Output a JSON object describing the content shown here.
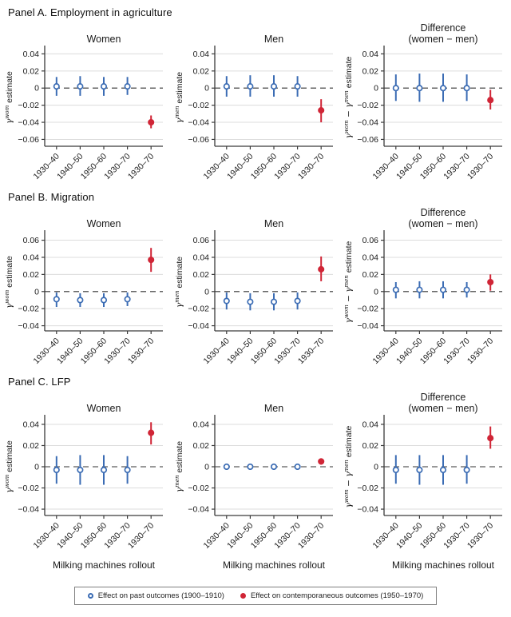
{
  "colors": {
    "blue": "#3b6cb4",
    "red": "#d02536",
    "grid": "#dcdcdc",
    "axis": "#3a3a3a",
    "zero_line": "#333333",
    "text": "#1a1a1a",
    "legend_border": "#7f7f7f"
  },
  "panels": [
    {
      "title": "Panel A. Employment in agriculture"
    },
    {
      "title": "Panel B. Migration"
    },
    {
      "title": "Panel C. LFP"
    }
  ],
  "legend": {
    "items": [
      {
        "label": "Effect on past outcomes (1900–1910)",
        "color": "blue",
        "marker": "open"
      },
      {
        "label": "Effect on contemporaneous outcomes (1950–1970)",
        "color": "red",
        "marker": "solid"
      }
    ]
  },
  "chart_data": [
    {
      "type": "scatter",
      "panel": "Panel A. Employment in agriculture",
      "title": "Women",
      "title2": "",
      "ylabel": "γ^{wom} estimate",
      "xlabel": "",
      "categories": [
        "1930–40",
        "1940–50",
        "1950–60",
        "1930–70",
        "1930–70"
      ],
      "yticks": [
        0.04,
        0.02,
        0,
        -0.02,
        -0.04,
        -0.06
      ],
      "ylim": [
        -0.068,
        0.046
      ],
      "grid": true,
      "zero_dashed": true,
      "series": [
        {
          "name": "Effect on past outcomes (1900–1910)",
          "color": "blue",
          "marker": "open",
          "points": [
            {
              "x": 0,
              "y": 0.002,
              "lo": -0.009,
              "hi": 0.013
            },
            {
              "x": 1,
              "y": 0.002,
              "lo": -0.009,
              "hi": 0.014
            },
            {
              "x": 2,
              "y": 0.002,
              "lo": -0.009,
              "hi": 0.013
            },
            {
              "x": 3,
              "y": 0.002,
              "lo": -0.008,
              "hi": 0.013
            }
          ]
        },
        {
          "name": "Effect on contemporaneous outcomes (1950–1970)",
          "color": "red",
          "marker": "solid",
          "points": [
            {
              "x": 4,
              "y": -0.04,
              "lo": -0.047,
              "hi": -0.032
            }
          ]
        }
      ]
    },
    {
      "type": "scatter",
      "panel": "Panel A. Employment in agriculture",
      "title": "Men",
      "title2": "",
      "ylabel": "γ^{men} estimate",
      "xlabel": "",
      "categories": [
        "1930–40",
        "1940–50",
        "1950–60",
        "1930–70",
        "1930–70"
      ],
      "yticks": [
        0.04,
        0.02,
        0,
        -0.02,
        -0.04,
        -0.06
      ],
      "ylim": [
        -0.068,
        0.046
      ],
      "grid": true,
      "zero_dashed": true,
      "series": [
        {
          "name": "Effect on past outcomes (1900–1910)",
          "color": "blue",
          "marker": "open",
          "points": [
            {
              "x": 0,
              "y": 0.002,
              "lo": -0.01,
              "hi": 0.014
            },
            {
              "x": 1,
              "y": 0.002,
              "lo": -0.01,
              "hi": 0.015
            },
            {
              "x": 2,
              "y": 0.002,
              "lo": -0.01,
              "hi": 0.015
            },
            {
              "x": 3,
              "y": 0.002,
              "lo": -0.01,
              "hi": 0.014
            }
          ]
        },
        {
          "name": "Effect on contemporaneous outcomes (1950–1970)",
          "color": "red",
          "marker": "solid",
          "points": [
            {
              "x": 4,
              "y": -0.026,
              "lo": -0.04,
              "hi": -0.013
            }
          ]
        }
      ]
    },
    {
      "type": "scatter",
      "panel": "Panel A. Employment in agriculture",
      "title": "Difference",
      "title2": "(women − men)",
      "ylabel": "γ^{wom} − γ^{men} estimate",
      "xlabel": "",
      "categories": [
        "1930–40",
        "1940–50",
        "1950–60",
        "1930–70",
        "1930–70"
      ],
      "yticks": [
        0.04,
        0.02,
        0,
        -0.02,
        -0.04,
        -0.06
      ],
      "ylim": [
        -0.068,
        0.046
      ],
      "grid": true,
      "zero_dashed": true,
      "series": [
        {
          "name": "Effect on past outcomes (1900–1910)",
          "color": "blue",
          "marker": "open",
          "points": [
            {
              "x": 0,
              "y": 0.0,
              "lo": -0.015,
              "hi": 0.016
            },
            {
              "x": 1,
              "y": 0.0,
              "lo": -0.016,
              "hi": 0.017
            },
            {
              "x": 2,
              "y": 0.0,
              "lo": -0.016,
              "hi": 0.017
            },
            {
              "x": 3,
              "y": 0.0,
              "lo": -0.015,
              "hi": 0.016
            }
          ]
        },
        {
          "name": "Effect on contemporaneous outcomes (1950–1970)",
          "color": "red",
          "marker": "solid",
          "points": [
            {
              "x": 4,
              "y": -0.014,
              "lo": -0.025,
              "hi": -0.002
            }
          ]
        }
      ]
    },
    {
      "type": "scatter",
      "panel": "Panel B. Migration",
      "title": "Women",
      "title2": "",
      "ylabel": "γ^{wom} estimate",
      "xlabel": "",
      "categories": [
        "1930–40",
        "1940–50",
        "1950–60",
        "1930–70",
        "1930–70"
      ],
      "yticks": [
        0.06,
        0.04,
        0.02,
        0,
        -0.02,
        -0.04
      ],
      "ylim": [
        -0.046,
        0.068
      ],
      "grid": true,
      "zero_dashed": true,
      "series": [
        {
          "name": "Effect on past outcomes (1900–1910)",
          "color": "blue",
          "marker": "open",
          "points": [
            {
              "x": 0,
              "y": -0.009,
              "lo": -0.018,
              "hi": -0.001
            },
            {
              "x": 1,
              "y": -0.01,
              "lo": -0.018,
              "hi": -0.002
            },
            {
              "x": 2,
              "y": -0.01,
              "lo": -0.018,
              "hi": -0.002
            },
            {
              "x": 3,
              "y": -0.009,
              "lo": -0.017,
              "hi": -0.001
            }
          ]
        },
        {
          "name": "Effect on contemporaneous outcomes (1950–1970)",
          "color": "red",
          "marker": "solid",
          "points": [
            {
              "x": 4,
              "y": 0.037,
              "lo": 0.023,
              "hi": 0.051
            }
          ]
        }
      ]
    },
    {
      "type": "scatter",
      "panel": "Panel B. Migration",
      "title": "Men",
      "title2": "",
      "ylabel": "γ^{men} estimate",
      "xlabel": "",
      "categories": [
        "1930–40",
        "1940–50",
        "1950–60",
        "1930–70",
        "1930–70"
      ],
      "yticks": [
        0.06,
        0.04,
        0.02,
        0,
        -0.02,
        -0.04
      ],
      "ylim": [
        -0.046,
        0.068
      ],
      "grid": true,
      "zero_dashed": true,
      "series": [
        {
          "name": "Effect on past outcomes (1900–1910)",
          "color": "blue",
          "marker": "open",
          "points": [
            {
              "x": 0,
              "y": -0.011,
              "lo": -0.021,
              "hi": -0.001
            },
            {
              "x": 1,
              "y": -0.012,
              "lo": -0.022,
              "hi": -0.002
            },
            {
              "x": 2,
              "y": -0.012,
              "lo": -0.022,
              "hi": -0.002
            },
            {
              "x": 3,
              "y": -0.011,
              "lo": -0.021,
              "hi": -0.001
            }
          ]
        },
        {
          "name": "Effect on contemporaneous outcomes (1950–1970)",
          "color": "red",
          "marker": "solid",
          "points": [
            {
              "x": 4,
              "y": 0.026,
              "lo": 0.012,
              "hi": 0.041
            }
          ]
        }
      ]
    },
    {
      "type": "scatter",
      "panel": "Panel B. Migration",
      "title": "Difference",
      "title2": "(women − men)",
      "ylabel": "γ^{wom} − γ^{men} estimate",
      "xlabel": "",
      "categories": [
        "1930–40",
        "1940–50",
        "1950–60",
        "1930–70",
        "1930–70"
      ],
      "yticks": [
        0.06,
        0.04,
        0.02,
        0,
        -0.02,
        -0.04
      ],
      "ylim": [
        -0.046,
        0.068
      ],
      "grid": true,
      "zero_dashed": true,
      "series": [
        {
          "name": "Effect on past outcomes (1900–1910)",
          "color": "blue",
          "marker": "open",
          "points": [
            {
              "x": 0,
              "y": 0.002,
              "lo": -0.008,
              "hi": 0.011
            },
            {
              "x": 1,
              "y": 0.002,
              "lo": -0.008,
              "hi": 0.012
            },
            {
              "x": 2,
              "y": 0.002,
              "lo": -0.008,
              "hi": 0.012
            },
            {
              "x": 3,
              "y": 0.002,
              "lo": -0.007,
              "hi": 0.011
            }
          ]
        },
        {
          "name": "Effect on contemporaneous outcomes (1950–1970)",
          "color": "red",
          "marker": "solid",
          "points": [
            {
              "x": 4,
              "y": 0.011,
              "lo": 0.001,
              "hi": 0.02
            }
          ]
        }
      ]
    },
    {
      "type": "scatter",
      "panel": "Panel C. LFP",
      "title": "Women",
      "title2": "",
      "ylabel": "γ^{wom} estimate",
      "xlabel": "Milking machines rollout",
      "categories": [
        "1930–40",
        "1940–50",
        "1950–60",
        "1930–70",
        "1930–70"
      ],
      "yticks": [
        0.04,
        0.02,
        0,
        -0.02,
        -0.04
      ],
      "ylim": [
        -0.046,
        0.046
      ],
      "grid": true,
      "zero_dashed": true,
      "series": [
        {
          "name": "Effect on past outcomes (1900–1910)",
          "color": "blue",
          "marker": "open",
          "points": [
            {
              "x": 0,
              "y": -0.003,
              "lo": -0.016,
              "hi": 0.01
            },
            {
              "x": 1,
              "y": -0.003,
              "lo": -0.017,
              "hi": 0.011
            },
            {
              "x": 2,
              "y": -0.003,
              "lo": -0.017,
              "hi": 0.011
            },
            {
              "x": 3,
              "y": -0.003,
              "lo": -0.016,
              "hi": 0.01
            }
          ]
        },
        {
          "name": "Effect on contemporaneous outcomes (1950–1970)",
          "color": "red",
          "marker": "solid",
          "points": [
            {
              "x": 4,
              "y": 0.032,
              "lo": 0.021,
              "hi": 0.042
            }
          ]
        }
      ]
    },
    {
      "type": "scatter",
      "panel": "Panel C. LFP",
      "title": "Men",
      "title2": "",
      "ylabel": "γ^{men} estimate",
      "xlabel": "Milking machines rollout",
      "categories": [
        "1930–40",
        "1940–50",
        "1950–60",
        "1930–70",
        "1930–70"
      ],
      "yticks": [
        0.04,
        0.02,
        0,
        -0.02,
        -0.04
      ],
      "ylim": [
        -0.046,
        0.046
      ],
      "grid": true,
      "zero_dashed": true,
      "series": [
        {
          "name": "Effect on past outcomes (1900–1910)",
          "color": "blue",
          "marker": "open",
          "points": [
            {
              "x": 0,
              "y": 0.0,
              "lo": -0.003,
              "hi": 0.003
            },
            {
              "x": 1,
              "y": 0.0,
              "lo": -0.003,
              "hi": 0.003
            },
            {
              "x": 2,
              "y": 0.0,
              "lo": -0.003,
              "hi": 0.003
            },
            {
              "x": 3,
              "y": 0.0,
              "lo": -0.003,
              "hi": 0.003
            }
          ]
        },
        {
          "name": "Effect on contemporaneous outcomes (1950–1970)",
          "color": "red",
          "marker": "solid",
          "points": [
            {
              "x": 4,
              "y": 0.005,
              "lo": 0.002,
              "hi": 0.008
            }
          ]
        }
      ]
    },
    {
      "type": "scatter",
      "panel": "Panel C. LFP",
      "title": "Difference",
      "title2": "(women − men)",
      "ylabel": "γ^{wom} − γ^{men} estimate",
      "xlabel": "Milking machines rollout",
      "categories": [
        "1930–40",
        "1940–50",
        "1950–60",
        "1930–70",
        "1930–70"
      ],
      "yticks": [
        0.04,
        0.02,
        0,
        -0.02,
        -0.04
      ],
      "ylim": [
        -0.046,
        0.046
      ],
      "grid": true,
      "zero_dashed": true,
      "series": [
        {
          "name": "Effect on past outcomes (1900–1910)",
          "color": "blue",
          "marker": "open",
          "points": [
            {
              "x": 0,
              "y": -0.003,
              "lo": -0.016,
              "hi": 0.011
            },
            {
              "x": 1,
              "y": -0.003,
              "lo": -0.017,
              "hi": 0.011
            },
            {
              "x": 2,
              "y": -0.003,
              "lo": -0.017,
              "hi": 0.011
            },
            {
              "x": 3,
              "y": -0.003,
              "lo": -0.016,
              "hi": 0.011
            }
          ]
        },
        {
          "name": "Effect on contemporaneous outcomes (1950–1970)",
          "color": "red",
          "marker": "solid",
          "points": [
            {
              "x": 4,
              "y": 0.027,
              "lo": 0.017,
              "hi": 0.038
            }
          ]
        }
      ]
    }
  ]
}
